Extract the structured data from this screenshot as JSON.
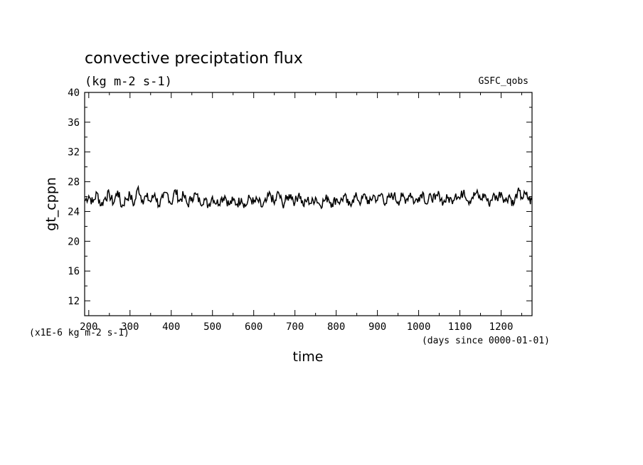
{
  "chart_data": {
    "type": "line",
    "title": "convective preciptation flux",
    "subtitle": "(kg m-2 s-1)",
    "source_label": "GSFC_qobs",
    "xlabel": "time",
    "xunit": "(days since 0000-01-01)",
    "ylabel": "gt_cppn",
    "yunit": "(x1E-6 kg m-2 s-1)",
    "xlim": [
      190,
      1275
    ],
    "ylim": [
      10,
      40
    ],
    "xticks": [
      200,
      300,
      400,
      500,
      600,
      700,
      800,
      900,
      1000,
      1100,
      1200
    ],
    "yticks": [
      12,
      16,
      20,
      24,
      28,
      32,
      36,
      40
    ],
    "grid": false,
    "series": [
      {
        "x": [
          190,
          200,
          210,
          220,
          230,
          240,
          250,
          260,
          270,
          280,
          290,
          300,
          310,
          320,
          330,
          340,
          350,
          360,
          370,
          380,
          390,
          400,
          410,
          420,
          430,
          440,
          450,
          460,
          470,
          480,
          490,
          500,
          510,
          520,
          530,
          540,
          550,
          560,
          570,
          580,
          590,
          600,
          610,
          620,
          630,
          640,
          650,
          660,
          670,
          680,
          690,
          700,
          710,
          720,
          730,
          740,
          750,
          760,
          770,
          780,
          790,
          800,
          810,
          820,
          830,
          840,
          850,
          860,
          870,
          880,
          890,
          900,
          910,
          920,
          930,
          940,
          950,
          960,
          970,
          980,
          990,
          1000,
          1010,
          1020,
          1030,
          1040,
          1050,
          1060,
          1070,
          1080,
          1090,
          1100,
          1110,
          1120,
          1130,
          1140,
          1150,
          1160,
          1170,
          1180,
          1190,
          1200,
          1210,
          1220,
          1230,
          1240,
          1250,
          1260,
          1270,
          1275
        ],
        "y": [
          25.4,
          26.1,
          25.2,
          26.5,
          24.8,
          25.9,
          26.3,
          25.1,
          26.8,
          24.6,
          25.7,
          26.2,
          24.9,
          27.3,
          25.5,
          26.0,
          25.3,
          26.4,
          24.8,
          25.8,
          26.5,
          25.0,
          26.9,
          25.4,
          26.2,
          24.9,
          25.9,
          26.3,
          25.2,
          25.7,
          24.8,
          26.0,
          25.1,
          25.6,
          26.1,
          24.9,
          25.5,
          25.0,
          25.8,
          24.7,
          25.9,
          25.2,
          25.5,
          24.6,
          25.3,
          26.4,
          25.0,
          26.6,
          24.9,
          25.7,
          26.3,
          25.2,
          26.5,
          24.8,
          25.6,
          25.1,
          25.9,
          24.9,
          25.4,
          25.9,
          25.0,
          25.7,
          25.3,
          26.1,
          24.8,
          25.6,
          26.0,
          25.2,
          26.3,
          25.0,
          26.2,
          25.5,
          26.4,
          25.1,
          25.9,
          26.2,
          25.3,
          26.0,
          25.6,
          26.5,
          25.2,
          25.9,
          26.6,
          25.0,
          26.1,
          25.6,
          26.3,
          25.2,
          25.8,
          25.5,
          26.4,
          25.7,
          26.9,
          25.4,
          25.9,
          26.5,
          25.6,
          26.3,
          25.0,
          26.1,
          25.8,
          26.6,
          25.4,
          26.2,
          24.9,
          26.7,
          25.9,
          26.3,
          25.4,
          25.6
        ]
      }
    ]
  }
}
